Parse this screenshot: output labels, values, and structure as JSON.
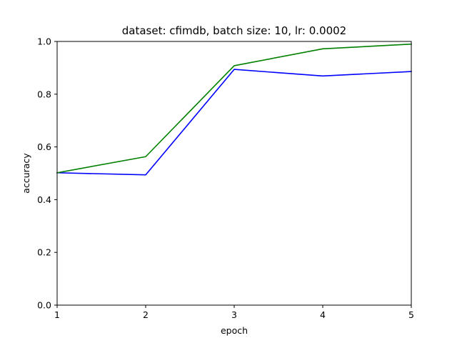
{
  "chart_data": {
    "type": "line",
    "title": "dataset: cfimdb, batch size: 10, lr: 0.0002",
    "xlabel": "epoch",
    "ylabel": "accuracy",
    "x": [
      1,
      2,
      3,
      4,
      5
    ],
    "xlim": [
      1,
      5
    ],
    "ylim": [
      0.0,
      1.0
    ],
    "xticks": [
      "1",
      "2",
      "3",
      "4",
      "5"
    ],
    "yticks": [
      "0.0",
      "0.2",
      "0.4",
      "0.6",
      "0.8",
      "1.0"
    ],
    "grid": false,
    "series": [
      {
        "color": "#0000ff",
        "values": [
          0.502,
          0.494,
          0.894,
          0.869,
          0.886
        ]
      },
      {
        "color": "#008000",
        "values": [
          0.502,
          0.563,
          0.908,
          0.972,
          0.99
        ]
      }
    ]
  }
}
